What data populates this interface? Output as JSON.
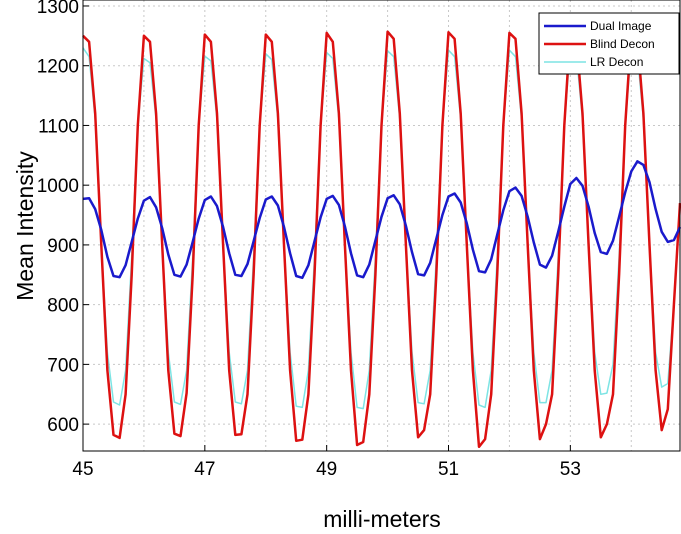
{
  "chart_data": {
    "type": "line",
    "xlabel": "milli-meters",
    "ylabel": "Mean Intensity",
    "xlim": [
      45,
      54.8
    ],
    "ylim": [
      555,
      1310
    ],
    "xticks": [
      45,
      47,
      49,
      51,
      53
    ],
    "yticks": [
      600,
      700,
      800,
      900,
      1000,
      1100,
      1200,
      1300
    ],
    "grid": true,
    "legend_position": "top-right",
    "series": [
      {
        "name": "Dual Image",
        "color": "#1a1acc",
        "x": [
          45.0,
          45.1,
          45.2,
          45.3,
          45.4,
          45.5,
          45.6,
          45.7,
          45.8,
          45.9,
          46.0,
          46.1,
          46.2,
          46.3,
          46.4,
          46.5,
          46.6,
          46.7,
          46.8,
          46.9,
          47.0,
          47.1,
          47.2,
          47.3,
          47.4,
          47.5,
          47.6,
          47.7,
          47.8,
          47.9,
          48.0,
          48.1,
          48.2,
          48.3,
          48.4,
          48.5,
          48.6,
          48.7,
          48.8,
          48.9,
          49.0,
          49.1,
          49.2,
          49.3,
          49.4,
          49.5,
          49.6,
          49.7,
          49.8,
          49.9,
          50.0,
          50.1,
          50.2,
          50.3,
          50.4,
          50.5,
          50.6,
          50.7,
          50.8,
          50.9,
          51.0,
          51.1,
          51.2,
          51.3,
          51.4,
          51.5,
          51.6,
          51.7,
          51.8,
          51.9,
          52.0,
          52.1,
          52.2,
          52.3,
          52.4,
          52.5,
          52.6,
          52.7,
          52.8,
          52.9,
          53.0,
          53.1,
          53.2,
          53.3,
          53.4,
          53.5,
          53.6,
          53.7,
          53.8,
          53.9,
          54.0,
          54.1,
          54.2,
          54.3,
          54.4,
          54.5,
          54.6,
          54.7,
          54.8
        ],
        "y": [
          977,
          978,
          960,
          925,
          880,
          848,
          846,
          866,
          905,
          944,
          974,
          980,
          963,
          928,
          884,
          850,
          847,
          867,
          905,
          944,
          975,
          981,
          965,
          930,
          886,
          850,
          848,
          868,
          906,
          945,
          976,
          981,
          966,
          930,
          886,
          848,
          845,
          866,
          906,
          946,
          977,
          982,
          967,
          931,
          886,
          849,
          846,
          867,
          907,
          947,
          978,
          983,
          968,
          932,
          888,
          851,
          849,
          870,
          910,
          950,
          981,
          986,
          971,
          936,
          892,
          856,
          854,
          876,
          917,
          958,
          990,
          996,
          982,
          947,
          904,
          867,
          862,
          882,
          922,
          964,
          1002,
          1012,
          999,
          964,
          920,
          888,
          885,
          907,
          947,
          988,
          1023,
          1040,
          1034,
          1005,
          960,
          922,
          905,
          908,
          930
        ]
      },
      {
        "name": "Blind Decon",
        "color": "#dd1111",
        "x": [
          45.0,
          45.1,
          45.2,
          45.3,
          45.4,
          45.5,
          45.6,
          45.7,
          45.8,
          45.9,
          46.0,
          46.1,
          46.2,
          46.3,
          46.4,
          46.5,
          46.6,
          46.7,
          46.8,
          46.9,
          47.0,
          47.1,
          47.2,
          47.3,
          47.4,
          47.5,
          47.6,
          47.7,
          47.8,
          47.9,
          48.0,
          48.1,
          48.2,
          48.3,
          48.4,
          48.5,
          48.6,
          48.7,
          48.8,
          48.9,
          49.0,
          49.1,
          49.2,
          49.3,
          49.4,
          49.5,
          49.6,
          49.7,
          49.8,
          49.9,
          50.0,
          50.1,
          50.2,
          50.3,
          50.4,
          50.5,
          50.6,
          50.7,
          50.8,
          50.9,
          51.0,
          51.1,
          51.2,
          51.3,
          51.4,
          51.5,
          51.6,
          51.7,
          51.8,
          51.9,
          52.0,
          52.1,
          52.2,
          52.3,
          52.4,
          52.5,
          52.6,
          52.7,
          52.8,
          52.9,
          53.0,
          53.1,
          53.2,
          53.3,
          53.4,
          53.5,
          53.6,
          53.7,
          53.8,
          53.9,
          54.0,
          54.1,
          54.2,
          54.3,
          54.4,
          54.5,
          54.6,
          54.7,
          54.8
        ],
        "y": [
          1250,
          1240,
          1120,
          900,
          690,
          582,
          577,
          650,
          850,
          1100,
          1250,
          1240,
          1120,
          900,
          690,
          584,
          580,
          652,
          850,
          1100,
          1252,
          1240,
          1120,
          900,
          690,
          582,
          583,
          650,
          850,
          1100,
          1252,
          1240,
          1120,
          900,
          690,
          572,
          574,
          650,
          850,
          1100,
          1255,
          1240,
          1120,
          900,
          690,
          565,
          570,
          650,
          850,
          1100,
          1257,
          1245,
          1120,
          900,
          690,
          578,
          590,
          650,
          850,
          1100,
          1256,
          1245,
          1120,
          900,
          690,
          562,
          575,
          650,
          850,
          1100,
          1255,
          1245,
          1120,
          900,
          690,
          575,
          600,
          650,
          850,
          1100,
          1258,
          1245,
          1120,
          900,
          690,
          578,
          600,
          650,
          850,
          1100,
          1256,
          1245,
          1120,
          900,
          690,
          590,
          625,
          800,
          970
        ]
      },
      {
        "name": "LR Decon",
        "color": "#7de4e4",
        "x": [
          45.0,
          45.1,
          45.2,
          45.3,
          45.4,
          45.5,
          45.6,
          45.7,
          45.8,
          45.9,
          46.0,
          46.1,
          46.2,
          46.3,
          46.4,
          46.5,
          46.6,
          46.7,
          46.8,
          46.9,
          47.0,
          47.1,
          47.2,
          47.3,
          47.4,
          47.5,
          47.6,
          47.7,
          47.8,
          47.9,
          48.0,
          48.1,
          48.2,
          48.3,
          48.4,
          48.5,
          48.6,
          48.7,
          48.8,
          48.9,
          49.0,
          49.1,
          49.2,
          49.3,
          49.4,
          49.5,
          49.6,
          49.7,
          49.8,
          49.9,
          50.0,
          50.1,
          50.2,
          50.3,
          50.4,
          50.5,
          50.6,
          50.7,
          50.8,
          50.9,
          51.0,
          51.1,
          51.2,
          51.3,
          51.4,
          51.5,
          51.6,
          51.7,
          51.8,
          51.9,
          52.0,
          52.1,
          52.2,
          52.3,
          52.4,
          52.5,
          52.6,
          52.7,
          52.8,
          52.9,
          53.0,
          53.1,
          53.2,
          53.3,
          53.4,
          53.5,
          53.6,
          53.7,
          53.8,
          53.9,
          54.0,
          54.1,
          54.2,
          54.3,
          54.4,
          54.5,
          54.6,
          54.7,
          54.8
        ],
        "y": [
          1230,
          1215,
          1110,
          900,
          720,
          637,
          632,
          690,
          880,
          1100,
          1212,
          1205,
          1110,
          900,
          720,
          637,
          633,
          690,
          880,
          1100,
          1216,
          1208,
          1110,
          900,
          720,
          637,
          634,
          690,
          880,
          1100,
          1220,
          1210,
          1110,
          900,
          720,
          630,
          628,
          690,
          880,
          1100,
          1222,
          1212,
          1110,
          900,
          720,
          628,
          626,
          690,
          880,
          1100,
          1225,
          1215,
          1110,
          900,
          720,
          636,
          634,
          690,
          880,
          1100,
          1226,
          1215,
          1110,
          900,
          720,
          632,
          628,
          690,
          880,
          1100,
          1226,
          1215,
          1110,
          900,
          720,
          636,
          636,
          690,
          880,
          1100,
          1228,
          1218,
          1110,
          900,
          720,
          650,
          652,
          700,
          880,
          1100,
          1226,
          1218,
          1110,
          900,
          720,
          662,
          668,
          800,
          970
        ]
      }
    ]
  }
}
